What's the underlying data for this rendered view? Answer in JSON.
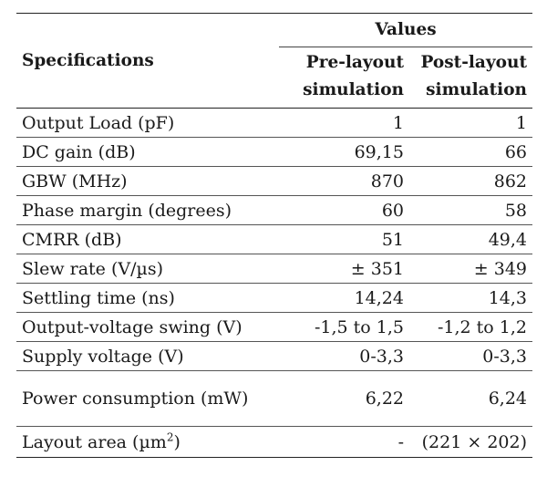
{
  "table": {
    "header": {
      "specifications": "Specifications",
      "values": "Values",
      "pre_line1": "Pre-layout",
      "pre_line2": "simulation",
      "post_line1": "Post-layout",
      "post_line2": "simulation"
    },
    "rows": [
      {
        "spec": "Output Load (pF)",
        "pre": "1",
        "post": "1"
      },
      {
        "spec": "DC gain (dB)",
        "pre": "69,15",
        "post": "66"
      },
      {
        "spec": "GBW (MHz)",
        "pre": "870",
        "post": "862"
      },
      {
        "spec": "Phase margin (degrees)",
        "pre": "60",
        "post": "58"
      },
      {
        "spec": "CMRR (dB)",
        "pre": "51",
        "post": "49,4"
      },
      {
        "spec": "Slew rate (V/µs)",
        "pre": "± 351",
        "post": "± 349"
      },
      {
        "spec": "Settling time (ns)",
        "pre": "14,24",
        "post": "14,3"
      },
      {
        "spec": "Output-voltage swing (V)",
        "pre": "-1,5 to 1,5",
        "post": "-1,2 to 1,2"
      },
      {
        "spec": "Supply voltage (V)",
        "pre": "0-3,3",
        "post": "0-3,3"
      },
      {
        "spec": "Power consumption (mW)",
        "pre": "6,22",
        "post": "6,24"
      },
      {
        "spec_main": "Layout area (µm",
        "spec_sup": "2",
        "spec_end": ")",
        "pre": "-",
        "post": "(221 × 202)"
      }
    ]
  }
}
